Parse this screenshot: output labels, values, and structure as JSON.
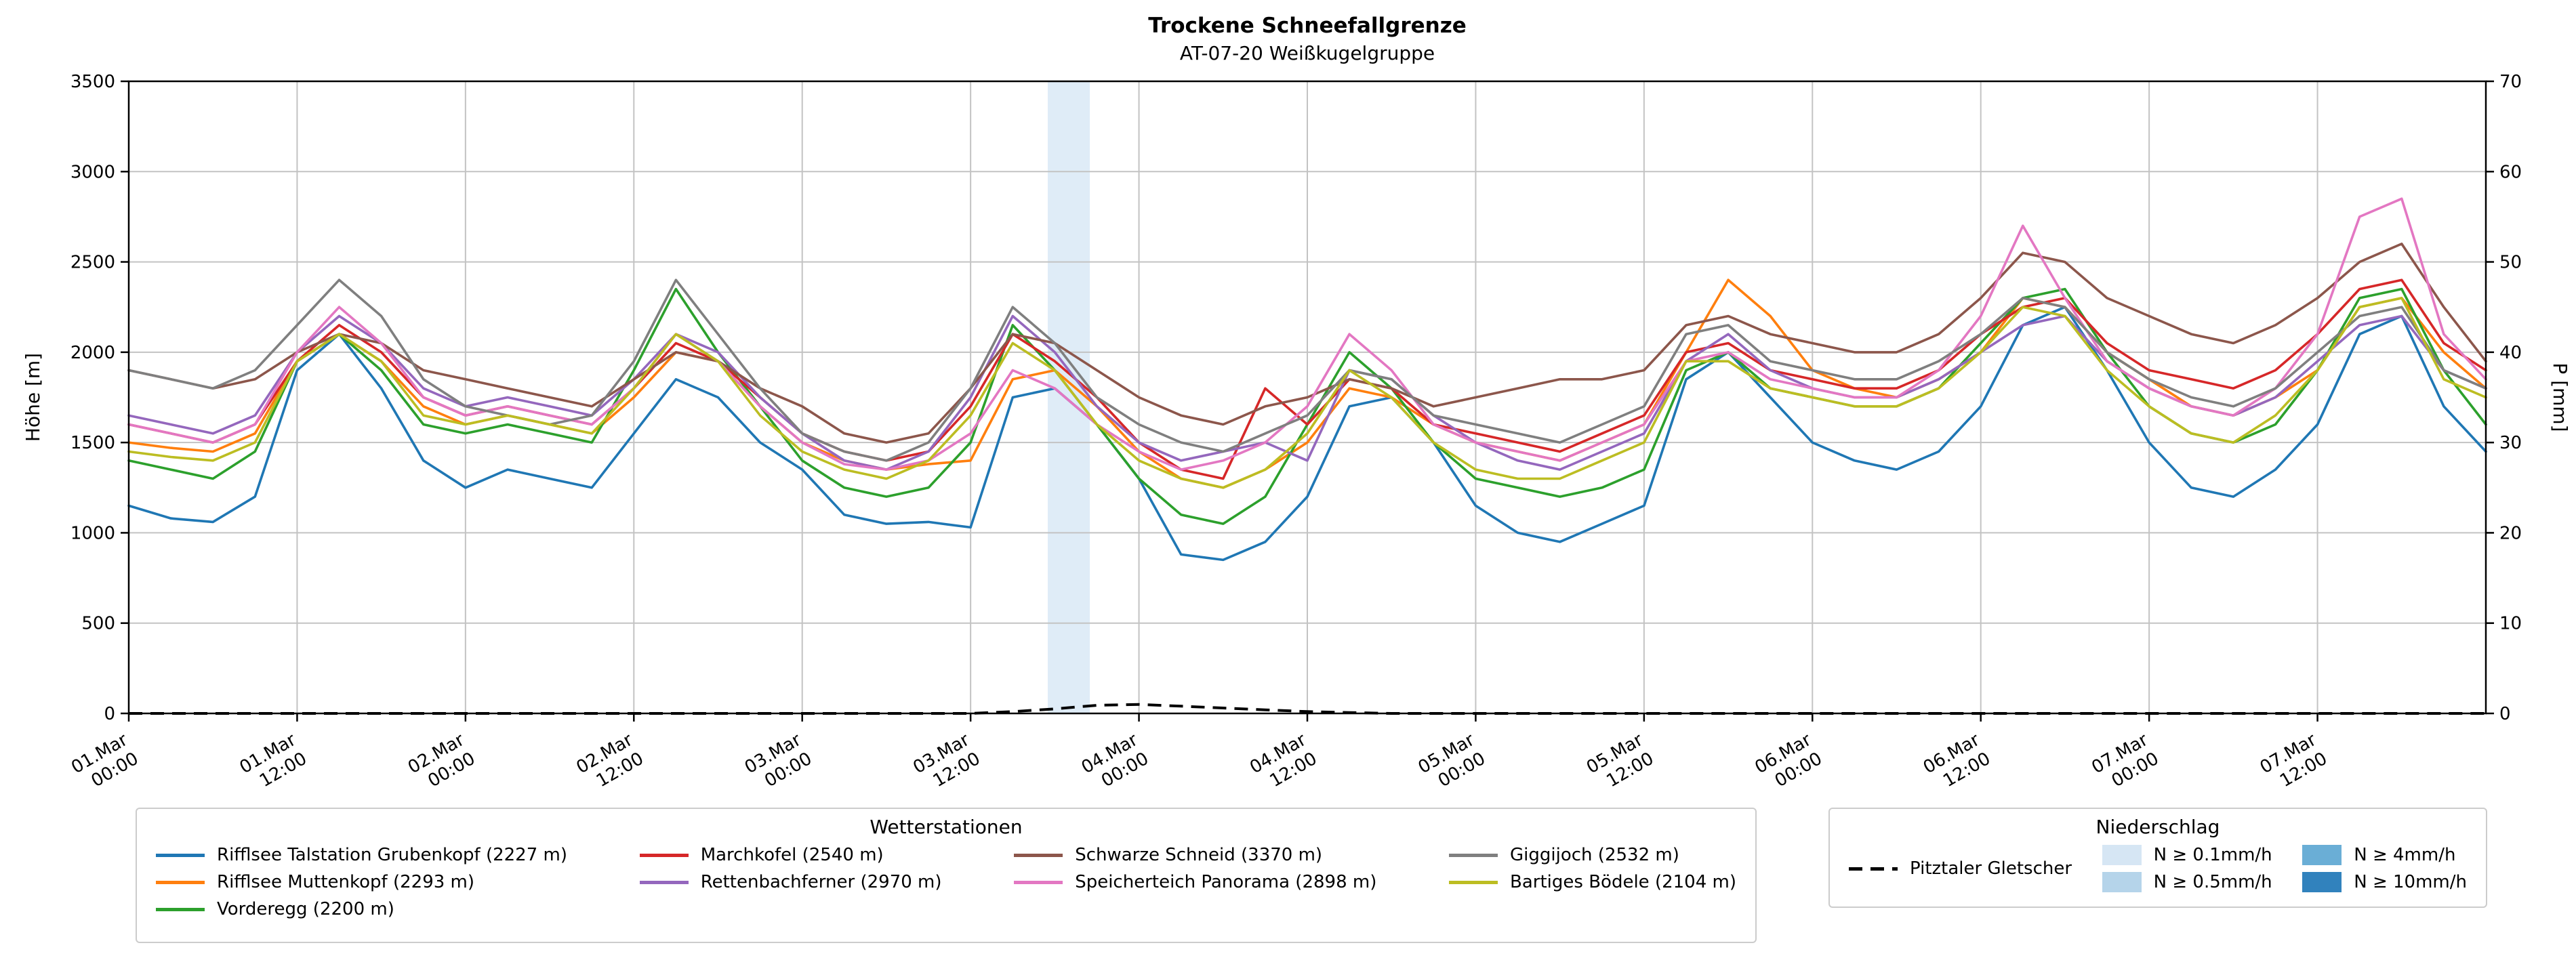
{
  "header": {
    "title": "Trockene Schneefallgrenze",
    "subtitle": "AT-07-20 Weißkugelgruppe"
  },
  "chart_data": {
    "type": "line",
    "title": "Trockene Schneefallgrenze",
    "subtitle": "AT-07-20 Weißkugelgruppe",
    "grid": true,
    "x_range_hours": [
      0,
      168
    ],
    "x_step_hours": 3,
    "x_ticks": [
      {
        "hour": 0,
        "date": "01.Mar",
        "time": "00:00"
      },
      {
        "hour": 12,
        "date": "01.Mar",
        "time": "12:00"
      },
      {
        "hour": 24,
        "date": "02.Mar",
        "time": "00:00"
      },
      {
        "hour": 36,
        "date": "02.Mar",
        "time": "12:00"
      },
      {
        "hour": 48,
        "date": "03.Mar",
        "time": "00:00"
      },
      {
        "hour": 60,
        "date": "03.Mar",
        "time": "12:00"
      },
      {
        "hour": 72,
        "date": "04.Mar",
        "time": "00:00"
      },
      {
        "hour": 84,
        "date": "04.Mar",
        "time": "12:00"
      },
      {
        "hour": 96,
        "date": "05.Mar",
        "time": "00:00"
      },
      {
        "hour": 108,
        "date": "05.Mar",
        "time": "12:00"
      },
      {
        "hour": 120,
        "date": "06.Mar",
        "time": "00:00"
      },
      {
        "hour": 132,
        "date": "06.Mar",
        "time": "12:00"
      },
      {
        "hour": 144,
        "date": "07.Mar",
        "time": "00:00"
      },
      {
        "hour": 156,
        "date": "07.Mar",
        "time": "12:00"
      }
    ],
    "ylabel": "Höhe [m]",
    "ylim": [
      0,
      3500
    ],
    "yticks": [
      0,
      500,
      1000,
      1500,
      2000,
      2500,
      3000,
      3500
    ],
    "y2label": "P [mm]",
    "y2lim": [
      0,
      70
    ],
    "y2ticks": [
      0,
      10,
      20,
      30,
      40,
      50,
      60,
      70
    ],
    "series": [
      {
        "name": "Rifflsee Talstation Grubenkopf (2227 m)",
        "color": "#1f77b4",
        "values": [
          1150,
          1080,
          1060,
          1200,
          1900,
          2100,
          1800,
          1400,
          1250,
          1350,
          1300,
          1250,
          1550,
          1850,
          1750,
          1500,
          1350,
          1100,
          1050,
          1060,
          1030,
          1750,
          1800,
          1600,
          1300,
          880,
          850,
          950,
          1200,
          1700,
          1750,
          1500,
          1150,
          1000,
          950,
          1050,
          1150,
          1850,
          2000,
          1750,
          1500,
          1400,
          1350,
          1450,
          1700,
          2150,
          2250,
          1900,
          1500,
          1250,
          1200,
          1350,
          1600,
          2100,
          2200,
          1700,
          1450
        ]
      },
      {
        "name": "Rifflsee Muttenkopf (2293 m)",
        "color": "#ff7f0e",
        "values": [
          1500,
          1470,
          1450,
          1550,
          1950,
          2100,
          1950,
          1700,
          1600,
          1650,
          1600,
          1550,
          1750,
          2000,
          1950,
          1700,
          1500,
          1400,
          1350,
          1380,
          1400,
          1850,
          1900,
          1700,
          1450,
          1300,
          1250,
          1350,
          1500,
          1800,
          1750,
          1600,
          1500,
          1450,
          1400,
          1500,
          1600,
          2000,
          2400,
          2200,
          1900,
          1800,
          1750,
          1850,
          2000,
          2300,
          2250,
          2000,
          1850,
          1700,
          1650,
          1750,
          1900,
          2250,
          2300,
          2000,
          1800
        ]
      },
      {
        "name": "Vorderegg (2200 m)",
        "color": "#2ca02c",
        "values": [
          1400,
          1350,
          1300,
          1450,
          1950,
          2100,
          1900,
          1600,
          1550,
          1600,
          1550,
          1500,
          1900,
          2350,
          2000,
          1700,
          1400,
          1250,
          1200,
          1250,
          1500,
          2150,
          1900,
          1600,
          1300,
          1100,
          1050,
          1200,
          1600,
          2000,
          1800,
          1500,
          1300,
          1250,
          1200,
          1250,
          1350,
          1900,
          2000,
          1800,
          1750,
          1700,
          1700,
          1800,
          2050,
          2300,
          2350,
          2000,
          1700,
          1550,
          1500,
          1600,
          1900,
          2300,
          2350,
          1900,
          1600
        ]
      },
      {
        "name": "Marchkofel (2540 m)",
        "color": "#d62728",
        "values": [
          1600,
          1550,
          1500,
          1600,
          1950,
          2150,
          2000,
          1750,
          1650,
          1700,
          1650,
          1600,
          1800,
          2050,
          1950,
          1750,
          1550,
          1450,
          1400,
          1450,
          1700,
          2100,
          1950,
          1750,
          1500,
          1350,
          1300,
          1800,
          1600,
          1850,
          1800,
          1600,
          1550,
          1500,
          1450,
          1550,
          1650,
          2000,
          2050,
          1900,
          1850,
          1800,
          1800,
          1900,
          2100,
          2250,
          2300,
          2050,
          1900,
          1850,
          1800,
          1900,
          2100,
          2350,
          2400,
          2050,
          1900
        ]
      },
      {
        "name": "Rettenbachferner (2970 m)",
        "color": "#9467bd",
        "values": [
          1650,
          1600,
          1550,
          1650,
          2000,
          2200,
          2050,
          1800,
          1700,
          1750,
          1700,
          1650,
          1850,
          2100,
          2000,
          1750,
          1550,
          1400,
          1350,
          1450,
          1750,
          2200,
          2000,
          1700,
          1500,
          1400,
          1450,
          1500,
          1400,
          1900,
          1850,
          1650,
          1500,
          1400,
          1350,
          1450,
          1550,
          1950,
          2100,
          1900,
          1800,
          1750,
          1750,
          1850,
          2000,
          2150,
          2200,
          1950,
          1800,
          1700,
          1650,
          1750,
          1950,
          2150,
          2200,
          1900,
          1800
        ]
      },
      {
        "name": "Schwarze Schneid (3370 m)",
        "color": "#8c564b",
        "values": [
          1900,
          1850,
          1800,
          1850,
          2000,
          2100,
          2050,
          1900,
          1850,
          1800,
          1750,
          1700,
          1850,
          2000,
          1950,
          1800,
          1700,
          1550,
          1500,
          1550,
          1800,
          2100,
          2050,
          1900,
          1750,
          1650,
          1600,
          1700,
          1750,
          1850,
          1800,
          1700,
          1750,
          1800,
          1850,
          1850,
          1900,
          2150,
          2200,
          2100,
          2050,
          2000,
          2000,
          2100,
          2300,
          2550,
          2500,
          2300,
          2200,
          2100,
          2050,
          2150,
          2300,
          2500,
          2600,
          2250,
          1950
        ]
      },
      {
        "name": "Speicherteich Panorama (2898 m)",
        "color": "#e377c2",
        "values": [
          1600,
          1550,
          1500,
          1600,
          2000,
          2250,
          2050,
          1750,
          1650,
          1700,
          1650,
          1600,
          1800,
          2100,
          1950,
          1700,
          1500,
          1380,
          1350,
          1400,
          1550,
          1900,
          1800,
          1600,
          1450,
          1350,
          1400,
          1500,
          1700,
          2100,
          1900,
          1600,
          1500,
          1450,
          1400,
          1500,
          1600,
          1950,
          2000,
          1850,
          1800,
          1750,
          1750,
          1900,
          2200,
          2700,
          2300,
          1950,
          1800,
          1700,
          1650,
          1800,
          2100,
          2750,
          2850,
          2100,
          1850
        ]
      },
      {
        "name": "Giggijoch (2532 m)",
        "color": "#7f7f7f",
        "values": [
          1900,
          1850,
          1800,
          1900,
          2150,
          2400,
          2200,
          1850,
          1700,
          1650,
          1600,
          1650,
          1950,
          2400,
          2100,
          1800,
          1550,
          1450,
          1400,
          1500,
          1800,
          2250,
          2050,
          1750,
          1600,
          1500,
          1450,
          1550,
          1650,
          1900,
          1850,
          1650,
          1600,
          1550,
          1500,
          1600,
          1700,
          2100,
          2150,
          1950,
          1900,
          1850,
          1850,
          1950,
          2100,
          2300,
          2250,
          2000,
          1850,
          1750,
          1700,
          1800,
          2000,
          2200,
          2250,
          1900,
          1800
        ]
      },
      {
        "name": "Bartiges Bödele (2104 m)",
        "color": "#bcbd22",
        "values": [
          1450,
          1420,
          1400,
          1500,
          1950,
          2100,
          1950,
          1650,
          1600,
          1650,
          1600,
          1550,
          1800,
          2100,
          1950,
          1650,
          1450,
          1350,
          1300,
          1400,
          1650,
          2050,
          1900,
          1600,
          1400,
          1300,
          1250,
          1350,
          1550,
          1900,
          1750,
          1500,
          1350,
          1300,
          1300,
          1400,
          1500,
          1950,
          1950,
          1800,
          1750,
          1700,
          1700,
          1800,
          2000,
          2250,
          2200,
          1900,
          1700,
          1550,
          1500,
          1650,
          1900,
          2250,
          2300,
          1850,
          1750
        ]
      }
    ],
    "glacier_line": {
      "name": "Pitztaler Gletscher",
      "color": "#000000",
      "dash": true,
      "axis": "right",
      "values": [
        0,
        0,
        0,
        0,
        0,
        0,
        0,
        0,
        0,
        0,
        0,
        0,
        0,
        0,
        0,
        0,
        0,
        0,
        0,
        0,
        0,
        0.2,
        0.5,
        0.9,
        1.0,
        0.8,
        0.6,
        0.4,
        0.2,
        0.1,
        0,
        0,
        0,
        0,
        0,
        0,
        0,
        0,
        0,
        0,
        0,
        0,
        0,
        0,
        0,
        0,
        0,
        0,
        0,
        0,
        0,
        0,
        0,
        0,
        0,
        0,
        0
      ]
    },
    "precip_bands": [
      {
        "start_hour": 65.5,
        "end_hour": 68.5,
        "level": "N ≥ 0.1mm/h",
        "color": "#dfecf7"
      }
    ]
  },
  "legend_stations": {
    "title": "Wetterstationen",
    "columns": [
      [
        0,
        1,
        2
      ],
      [
        3,
        4
      ],
      [
        5,
        6
      ],
      [
        7,
        8
      ]
    ]
  },
  "legend_precip": {
    "title": "Niederschlag",
    "line_item": "Pitztaler Gletscher",
    "patches": [
      {
        "label": "N ≥ 0.1mm/h",
        "color": "#d6e6f4"
      },
      {
        "label": "N ≥ 0.5mm/h",
        "color": "#b5d4ea"
      },
      {
        "label": "N ≥ 4mm/h",
        "color": "#6aaed6"
      },
      {
        "label": "N ≥ 10mm/h",
        "color": "#3182bd"
      }
    ]
  }
}
